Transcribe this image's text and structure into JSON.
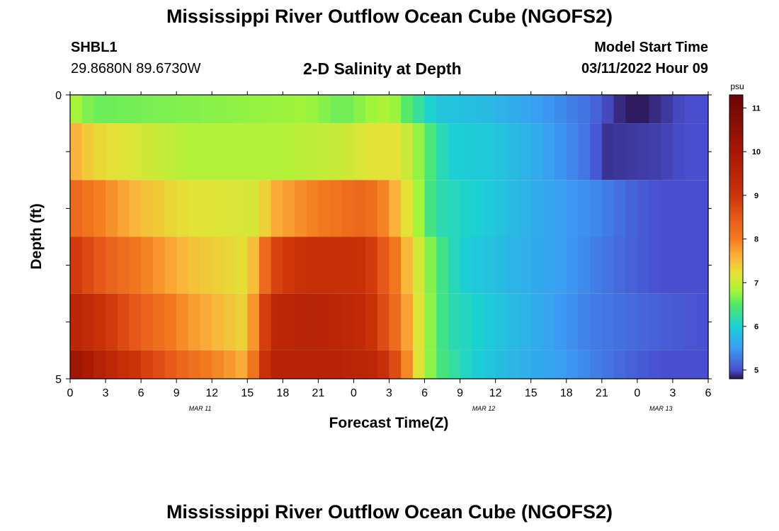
{
  "header": {
    "title": "Mississippi River Outflow Ocean Cube (NGOFS2)",
    "station": "SHBL1",
    "coordinates": "29.8680N  89.6730W",
    "subtitle": "2-D Salinity at Depth",
    "model_start_label": "Model Start Time",
    "model_start_value": "03/11/2022 Hour 09"
  },
  "footer": {
    "title": "Mississippi River Outflow Ocean Cube (NGOFS2)"
  },
  "chart_data": {
    "type": "heatmap",
    "xlabel": "Forecast Time(Z)",
    "ylabel": "Depth (ft)",
    "x_tick_labels": [
      "0",
      "3",
      "6",
      "9",
      "12",
      "15",
      "18",
      "21",
      "0",
      "3",
      "6",
      "9",
      "12",
      "15",
      "18",
      "21",
      "0",
      "3",
      "6"
    ],
    "x_ticks_hours": [
      0,
      3,
      6,
      9,
      12,
      15,
      18,
      21,
      24,
      27,
      30,
      33,
      36,
      39,
      42,
      45,
      48,
      51,
      54
    ],
    "xlim_hours": [
      0,
      54
    ],
    "date_labels": [
      {
        "label": "MAR 11",
        "hour": 11
      },
      {
        "label": "MAR 12",
        "hour": 35
      },
      {
        "label": "MAR 13",
        "hour": 50
      }
    ],
    "y_tick_labels": [
      "0",
      "5"
    ],
    "ylim": [
      0,
      5
    ],
    "y_minor_ticks": [
      1,
      2,
      3,
      4
    ],
    "colorbar": {
      "unit": "psu",
      "range": [
        4.8,
        11.3
      ],
      "ticks": [
        "5",
        "6",
        "7",
        "8",
        "9",
        "10",
        "11"
      ],
      "tick_values": [
        5,
        6,
        7,
        8,
        9,
        10,
        11
      ],
      "stops": [
        {
          "v": 4.8,
          "c": "#2b1450"
        },
        {
          "v": 5.0,
          "c": "#4a4fcf"
        },
        {
          "v": 5.5,
          "c": "#3b9cf5"
        },
        {
          "v": 6.0,
          "c": "#1bd1d4"
        },
        {
          "v": 6.5,
          "c": "#4fe86c"
        },
        {
          "v": 6.8,
          "c": "#a2f53a"
        },
        {
          "v": 7.2,
          "c": "#e4e236"
        },
        {
          "v": 7.6,
          "c": "#fbb23a"
        },
        {
          "v": 8.0,
          "c": "#f37a1f"
        },
        {
          "v": 8.5,
          "c": "#e6571a"
        },
        {
          "v": 9.0,
          "c": "#cc3308"
        },
        {
          "v": 10.0,
          "c": "#a71804"
        },
        {
          "v": 11.3,
          "c": "#6b0505"
        }
      ]
    },
    "layers": [
      {
        "depth_range": [
          0,
          0.5
        ],
        "keyframes": [
          [
            0,
            6.9
          ],
          [
            2,
            6.6
          ],
          [
            20,
            6.8
          ],
          [
            23,
            6.6
          ],
          [
            27,
            6.9
          ],
          [
            29,
            6.4
          ],
          [
            31,
            5.9
          ],
          [
            35,
            5.8
          ],
          [
            40,
            5.5
          ],
          [
            44,
            5.2
          ],
          [
            46,
            4.9
          ],
          [
            48,
            4.8
          ],
          [
            50,
            4.9
          ],
          [
            52,
            5.0
          ],
          [
            54,
            5.0
          ]
        ]
      },
      {
        "depth_range": [
          0.5,
          1.5
        ],
        "keyframes": [
          [
            0,
            7.7
          ],
          [
            2,
            7.3
          ],
          [
            6,
            7.1
          ],
          [
            10,
            6.9
          ],
          [
            18,
            6.9
          ],
          [
            22,
            7.0
          ],
          [
            26,
            7.2
          ],
          [
            28,
            7.2
          ],
          [
            30,
            6.6
          ],
          [
            32,
            6.0
          ],
          [
            36,
            5.9
          ],
          [
            40,
            5.6
          ],
          [
            44,
            5.2
          ],
          [
            45,
            4.9
          ],
          [
            50,
            4.95
          ],
          [
            52,
            5.0
          ],
          [
            54,
            5.0
          ]
        ]
      },
      {
        "depth_range": [
          1.5,
          2.5
        ],
        "keyframes": [
          [
            0,
            8.3
          ],
          [
            3,
            7.9
          ],
          [
            6,
            7.5
          ],
          [
            10,
            7.2
          ],
          [
            16,
            7.1
          ],
          [
            17,
            7.6
          ],
          [
            20,
            7.9
          ],
          [
            25,
            8.3
          ],
          [
            27,
            7.8
          ],
          [
            29,
            7.0
          ],
          [
            31,
            6.2
          ],
          [
            36,
            5.9
          ],
          [
            40,
            5.6
          ],
          [
            44,
            5.4
          ],
          [
            48,
            5.1
          ],
          [
            50,
            5.0
          ],
          [
            54,
            5.0
          ]
        ]
      },
      {
        "depth_range": [
          2.5,
          3.5
        ],
        "keyframes": [
          [
            0,
            9.0
          ],
          [
            3,
            8.4
          ],
          [
            6,
            8.0
          ],
          [
            10,
            7.5
          ],
          [
            15,
            7.2
          ],
          [
            16,
            7.8
          ],
          [
            17,
            8.7
          ],
          [
            20,
            9.2
          ],
          [
            25,
            9.1
          ],
          [
            27,
            8.3
          ],
          [
            29,
            7.3
          ],
          [
            31,
            6.5
          ],
          [
            33,
            6.0
          ],
          [
            38,
            5.7
          ],
          [
            42,
            5.5
          ],
          [
            46,
            5.2
          ],
          [
            50,
            5.0
          ],
          [
            54,
            5.0
          ]
        ]
      },
      {
        "depth_range": [
          3.5,
          4.5
        ],
        "keyframes": [
          [
            0,
            9.6
          ],
          [
            3,
            9.0
          ],
          [
            6,
            8.4
          ],
          [
            10,
            7.8
          ],
          [
            15,
            7.3
          ],
          [
            16,
            8.3
          ],
          [
            17,
            9.4
          ],
          [
            20,
            9.6
          ],
          [
            25,
            9.3
          ],
          [
            28,
            8.0
          ],
          [
            30,
            6.9
          ],
          [
            32,
            6.2
          ],
          [
            36,
            5.9
          ],
          [
            40,
            5.6
          ],
          [
            44,
            5.3
          ],
          [
            50,
            5.1
          ],
          [
            54,
            5.0
          ]
        ]
      },
      {
        "depth_range": [
          4.5,
          5.0
        ],
        "keyframes": [
          [
            0,
            10.3
          ],
          [
            3,
            9.5
          ],
          [
            6,
            8.9
          ],
          [
            10,
            8.2
          ],
          [
            15,
            7.6
          ],
          [
            16,
            8.6
          ],
          [
            17,
            9.6
          ],
          [
            22,
            9.6
          ],
          [
            26,
            9.4
          ],
          [
            28,
            8.4
          ],
          [
            29,
            7.4
          ],
          [
            31,
            6.5
          ],
          [
            34,
            6.0
          ],
          [
            38,
            5.7
          ],
          [
            42,
            5.5
          ],
          [
            46,
            5.2
          ],
          [
            50,
            5.0
          ],
          [
            54,
            5.0
          ]
        ]
      }
    ]
  }
}
